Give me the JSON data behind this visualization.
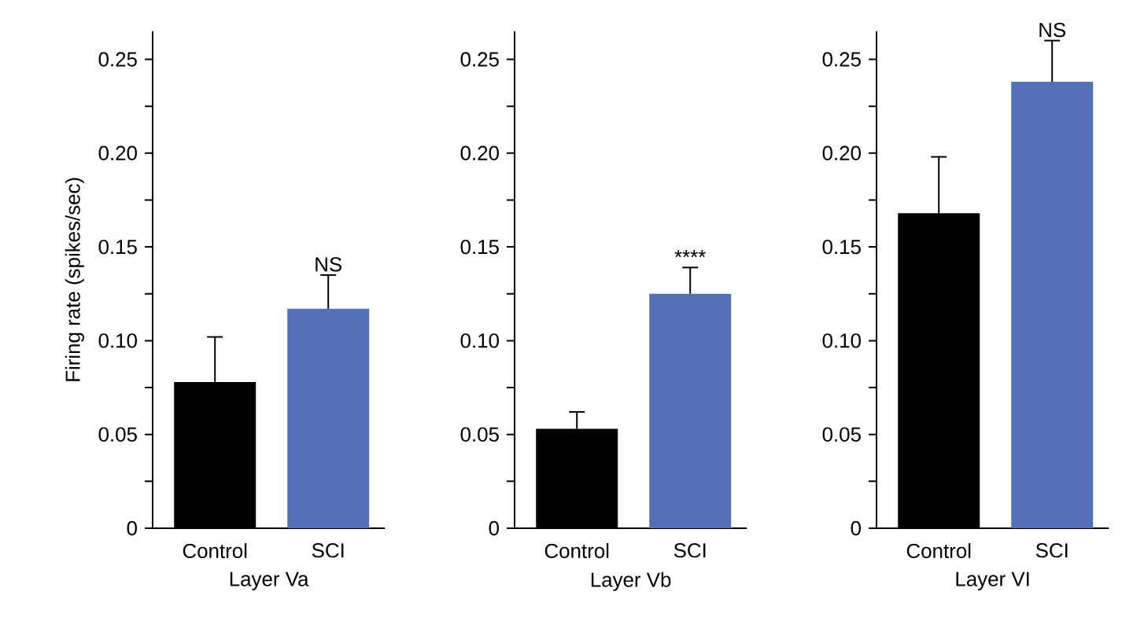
{
  "chart_data": [
    {
      "type": "bar",
      "ylabel": "Firing rate (spikes/sec)",
      "xlabel": "Layer Va",
      "categories": [
        "Control",
        "SCI"
      ],
      "values": [
        0.078,
        0.117
      ],
      "errors": [
        0.024,
        0.018
      ],
      "colors": [
        "#000000",
        "#5470b8"
      ],
      "ylim": [
        0,
        0.265
      ],
      "yticks": [
        0,
        {
          "value": 0.025,
          "label": null
        },
        0.05,
        {
          "value": 0.075,
          "label": null
        },
        {
          "value": 0.1,
          "label": "0.10"
        },
        {
          "value": 0.125,
          "label": null
        },
        0.15,
        {
          "value": 0.175,
          "label": null
        },
        {
          "value": 0.2,
          "label": "0.20"
        },
        {
          "value": 0.225,
          "label": null
        },
        0.25
      ],
      "annotations": [
        {
          "text": "NS",
          "x": "SCI",
          "y": 0.135
        }
      ]
    },
    {
      "type": "bar",
      "xlabel": "Layer Vb",
      "categories": [
        "Control",
        "SCI"
      ],
      "values": [
        0.053,
        0.125
      ],
      "errors": [
        0.009,
        0.014
      ],
      "colors": [
        "#000000",
        "#5470b8"
      ],
      "ylim": [
        0,
        0.265
      ],
      "yticks": [
        0,
        {
          "value": 0.025,
          "label": null
        },
        0.05,
        {
          "value": 0.075,
          "label": null
        },
        {
          "value": 0.1,
          "label": "0.10"
        },
        {
          "value": 0.125,
          "label": null
        },
        0.15,
        {
          "value": 0.175,
          "label": null
        },
        {
          "value": 0.2,
          "label": "0.20"
        },
        {
          "value": 0.225,
          "label": null
        },
        0.25
      ],
      "annotations": [
        {
          "text": "****",
          "x": "SCI",
          "y": 0.139
        }
      ]
    },
    {
      "type": "bar",
      "xlabel": "Layer VI",
      "categories": [
        "Control",
        "SCI"
      ],
      "values": [
        0.168,
        0.238
      ],
      "errors": [
        0.03,
        0.022
      ],
      "colors": [
        "#000000",
        "#5470b8"
      ],
      "ylim": [
        0,
        0.265
      ],
      "yticks": [
        0,
        {
          "value": 0.025,
          "label": null
        },
        0.05,
        {
          "value": 0.075,
          "label": null
        },
        {
          "value": 0.1,
          "label": "0.10"
        },
        {
          "value": 0.125,
          "label": null
        },
        0.15,
        {
          "value": 0.175,
          "label": null
        },
        {
          "value": 0.2,
          "label": "0.20"
        },
        {
          "value": 0.225,
          "label": null
        },
        0.25
      ],
      "annotations": [
        {
          "text": "NS",
          "x": "SCI",
          "y": 0.26
        }
      ]
    }
  ]
}
